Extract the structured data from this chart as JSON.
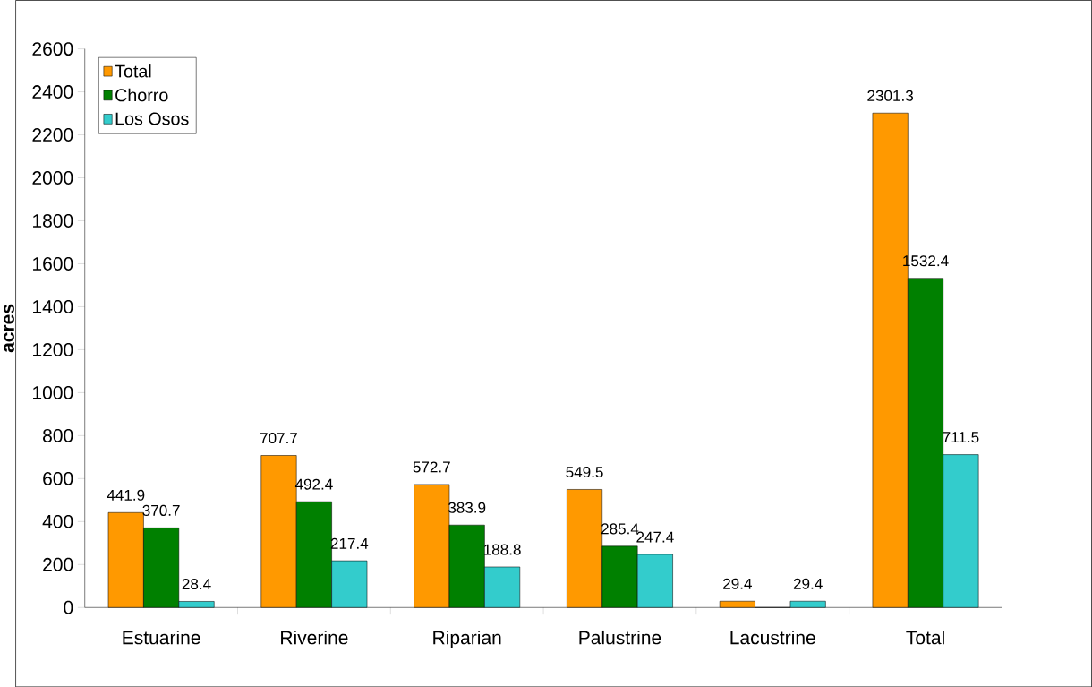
{
  "chart_data": {
    "type": "bar",
    "ylabel": "**acres**",
    "categories": [
      "Estuarine",
      "Riverine",
      "Riparian",
      "Palustrine",
      "Lacustrine",
      "Total"
    ],
    "series": [
      {
        "name": "Total",
        "color": "#ff9900",
        "values": [
          441.9,
          707.7,
          572.7,
          549.5,
          29.4,
          2301.3
        ],
        "value_labels": [
          "441.9",
          "707.7",
          "572.7",
          "549.5",
          "29.4",
          "2301.3"
        ]
      },
      {
        "name": "Chorro",
        "color": "#008000",
        "values": [
          370.7,
          492.4,
          383.9,
          285.4,
          0,
          1532.4
        ],
        "value_labels": [
          "370.7",
          "492.4",
          "383.9",
          "285.4",
          null,
          "1532.4"
        ]
      },
      {
        "name": "Los Osos",
        "color": "#33cccc",
        "values": [
          28.4,
          217.4,
          188.8,
          247.4,
          29.4,
          711.5
        ],
        "value_labels": [
          "28.4",
          "217.4",
          "188.8",
          "247.4",
          "29.4",
          "711.5"
        ]
      }
    ],
    "ylim": [
      0,
      2600
    ],
    "yticks": [
      0,
      200,
      400,
      600,
      800,
      1000,
      1200,
      1400,
      1600,
      1800,
      2000,
      2200,
      2400,
      2600
    ],
    "legend": "top left"
  }
}
